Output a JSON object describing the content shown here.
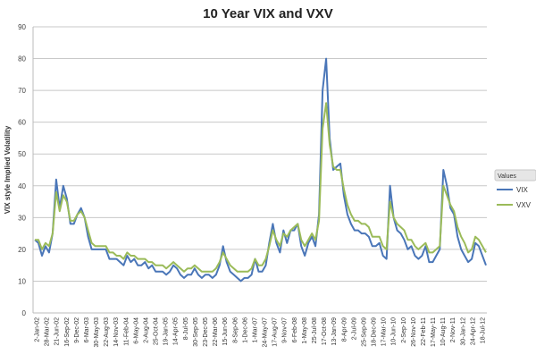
{
  "chart_data": {
    "type": "line",
    "title": "10 Year VIX and VXV",
    "xlabel": "",
    "ylabel": "VIX style Implied Volatility",
    "ylim": [
      0,
      90
    ],
    "yticks": [
      0,
      10,
      20,
      30,
      40,
      50,
      60,
      70,
      80,
      90
    ],
    "grid": "horizontal",
    "legend": {
      "title": "Values",
      "placement": "right"
    },
    "xtick_labels": [
      "2-Jan-02",
      "28-Mar-02",
      "21-Jun-02",
      "16-Sep-02",
      "9-Dec-02",
      "6-Mar-03",
      "30-May-03",
      "22-Aug-03",
      "14-Nov-03",
      "11-Feb-04",
      "6-May-04",
      "2-Aug-04",
      "25-Oct-04",
      "19-Jan-05",
      "14-Apr-05",
      "8-Jul-05",
      "30-Sep-05",
      "23-Dec-05",
      "22-Mar-06",
      "15-Jun-06",
      "8-Sep-06",
      "1-Dec-06",
      "1-Mar-07",
      "24-May-07",
      "17-Aug-07",
      "9-Nov-07",
      "6-Feb-08",
      "1-May-08",
      "25-Jul-08",
      "17-Oct-08",
      "13-Jan-09",
      "8-Apr-09",
      "2-Jul-09",
      "25-Sep-09",
      "18-Dec-09",
      "17-Mar-10",
      "10-Jun-10",
      "2-Sep-10",
      "26-Nov-10",
      "22-Feb-11",
      "17-May-11",
      "10-Aug-11",
      "2-Nov-11",
      "30-Jan-12",
      "24-Apr-12",
      "18-Jul-12"
    ],
    "x_start": "2002-01",
    "x_end": "2012-08",
    "x_step": "month",
    "series": [
      {
        "name": "VIX",
        "color": "#4a76b8",
        "values": [
          23,
          22,
          18,
          21,
          19,
          25,
          42,
          33,
          40,
          36,
          28,
          28,
          31,
          33,
          30,
          24,
          20,
          20,
          20,
          20,
          20,
          17,
          17,
          17,
          16,
          15,
          18,
          16,
          17,
          15,
          15,
          16,
          14,
          15,
          13,
          13,
          13,
          12,
          13,
          15,
          14,
          12,
          11,
          12,
          12,
          14,
          12,
          11,
          12,
          12,
          11,
          12,
          15,
          21,
          16,
          13,
          12,
          11,
          10,
          11,
          11,
          12,
          17,
          13,
          13,
          15,
          22,
          28,
          22,
          19,
          26,
          22,
          26,
          26,
          28,
          21,
          18,
          22,
          24,
          21,
          31,
          70,
          80,
          55,
          45,
          46,
          47,
          37,
          31,
          28,
          26,
          26,
          25,
          25,
          24,
          21,
          21,
          22,
          18,
          17,
          40,
          30,
          26,
          25,
          23,
          20,
          21,
          18,
          17,
          18,
          21,
          16,
          16,
          18,
          20,
          45,
          40,
          33,
          31,
          24,
          20,
          18,
          16,
          17,
          22,
          21,
          18,
          15
        ]
      },
      {
        "name": "VXV",
        "color": "#9bbb59",
        "values": [
          23,
          23,
          20,
          22,
          21,
          25,
          38,
          32,
          37,
          35,
          29,
          29,
          31,
          32,
          30,
          26,
          22,
          21,
          21,
          21,
          21,
          19,
          19,
          18,
          18,
          17,
          19,
          18,
          18,
          17,
          17,
          17,
          16,
          16,
          15,
          15,
          15,
          14,
          15,
          16,
          15,
          14,
          13,
          14,
          14,
          15,
          14,
          13,
          13,
          13,
          13,
          14,
          16,
          19,
          17,
          15,
          14,
          13,
          13,
          13,
          13,
          14,
          17,
          15,
          15,
          17,
          21,
          26,
          23,
          21,
          25,
          24,
          26,
          27,
          28,
          23,
          21,
          23,
          25,
          23,
          29,
          58,
          66,
          53,
          46,
          45,
          45,
          39,
          34,
          31,
          29,
          29,
          28,
          28,
          27,
          24,
          24,
          24,
          21,
          20,
          35,
          30,
          28,
          27,
          26,
          23,
          23,
          21,
          20,
          21,
          22,
          19,
          19,
          20,
          21,
          40,
          37,
          34,
          32,
          27,
          24,
          22,
          19,
          20,
          24,
          23,
          21,
          19
        ]
      }
    ]
  }
}
